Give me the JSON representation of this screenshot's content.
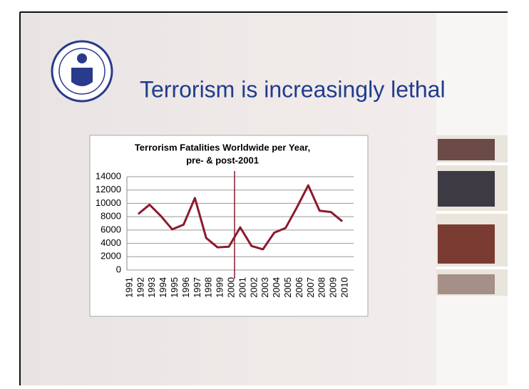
{
  "slide": {
    "title": "Terrorism is increasingly lethal"
  },
  "chart_data": {
    "type": "line",
    "title": "Terrorism Fatalities Worldwide per Year,",
    "subtitle": "pre- & post-2001",
    "categories": [
      "1991",
      "1992",
      "1993",
      "1994",
      "1995",
      "1996",
      "1997",
      "1998",
      "1999",
      "2000",
      "2001",
      "2002",
      "2003",
      "2004",
      "2005",
      "2006",
      "2007",
      "2008",
      "2009",
      "2010"
    ],
    "series": [
      {
        "name": null,
        "color": "#8b1a2e",
        "values": [
          null,
          8400,
          9800,
          8100,
          6100,
          6800,
          10800,
          4800,
          3400,
          3500,
          6400,
          3600,
          3100,
          5600,
          6300,
          9400,
          12700,
          8900,
          8700,
          7300
        ]
      }
    ],
    "ylim": [
      0,
      14000
    ],
    "yticks": [
      0,
      2000,
      4000,
      6000,
      8000,
      10000,
      12000,
      14000
    ],
    "grid": true
  }
}
